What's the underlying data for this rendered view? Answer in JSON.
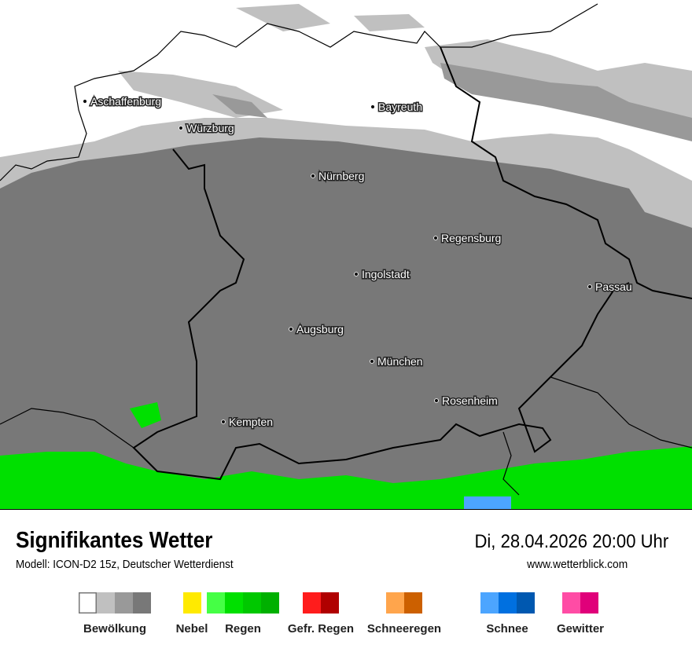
{
  "map": {
    "cities": [
      {
        "name": "Aschaffenburg",
        "lon_lat_hint": ""
      },
      {
        "name": "Bayreuth"
      },
      {
        "name": "Würzburg"
      },
      {
        "name": "Nürnberg"
      },
      {
        "name": "Regensburg"
      },
      {
        "name": "Ingolstadt"
      },
      {
        "name": "Passau"
      },
      {
        "name": "Augsburg"
      },
      {
        "name": "München"
      },
      {
        "name": "Rosenheim"
      },
      {
        "name": "Kempten"
      }
    ]
  },
  "header": {
    "title": "Signifikantes Wetter",
    "subtitle": "Modell: ICON-D2 15z, Deutscher Wetterdienst",
    "datetime": "Di, 28.04.2026 20:00 Uhr",
    "website": "www.wetterblick.com"
  },
  "legend": [
    {
      "label": "Bewölkung",
      "colors": [
        "#ffffff",
        "#c0c0c0",
        "#999999",
        "#787878"
      ]
    },
    {
      "label": "Nebel",
      "colors": [
        "#ffea00"
      ]
    },
    {
      "label": "Regen",
      "colors": [
        "#45ff45",
        "#00e000",
        "#00c800",
        "#00b000"
      ]
    },
    {
      "label": "Gefr. Regen",
      "colors": [
        "#ff1c1c",
        "#b00000"
      ]
    },
    {
      "label": "Schneeregen",
      "colors": [
        "#ffa54c",
        "#cc6000"
      ]
    },
    {
      "label": "Schnee",
      "colors": [
        "#4ca5ff",
        "#0070e0",
        "#0058b0"
      ]
    },
    {
      "label": "Gewitter",
      "colors": [
        "#ff4ca5",
        "#e0007a"
      ]
    }
  ]
}
